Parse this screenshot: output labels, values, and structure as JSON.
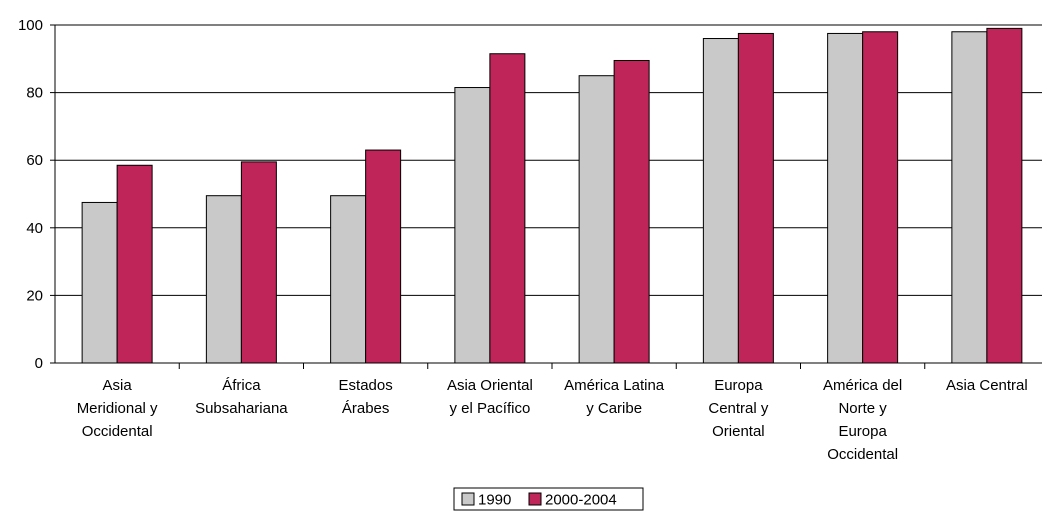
{
  "chart_data": {
    "type": "bar",
    "title": "",
    "xlabel": "",
    "ylabel": "",
    "ylim": [
      0,
      100
    ],
    "yticks": [
      "0",
      "20",
      "40",
      "60",
      "80",
      "100"
    ],
    "grid": true,
    "legend_position": "bottom",
    "categories": [
      [
        "Asia",
        "Meridional y",
        "Occidental"
      ],
      [
        "África",
        "Subsahariana"
      ],
      [
        "Estados",
        "Árabes"
      ],
      [
        "Asia Oriental",
        "y el Pacífico"
      ],
      [
        "América Latina",
        "y Caribe"
      ],
      [
        "Europa",
        "Central y",
        "Oriental"
      ],
      [
        "América del",
        "Norte y",
        "Europa",
        "Occidental"
      ],
      [
        "Asia Central"
      ]
    ],
    "series": [
      {
        "name": "1990",
        "color": "#c9c9c9",
        "values": [
          47.5,
          49.5,
          49.5,
          81.5,
          85,
          96,
          97.5,
          98
        ]
      },
      {
        "name": "2000-2004",
        "color": "#bf2558",
        "values": [
          58.5,
          59.5,
          63,
          91.5,
          89.5,
          97.5,
          98,
          99
        ]
      }
    ]
  }
}
